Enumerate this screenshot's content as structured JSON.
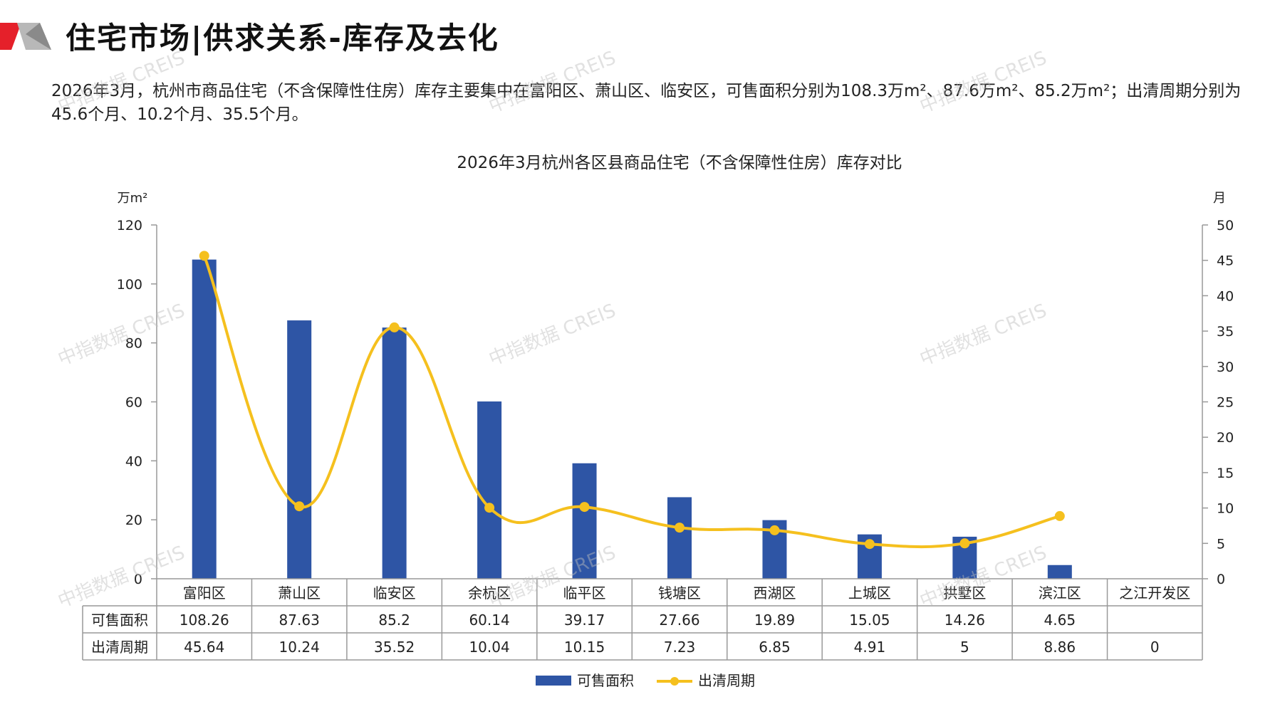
{
  "header": {
    "title": "住宅市场|供求关系-库存及去化"
  },
  "summary": {
    "text": "2026年3月，杭州市商品住宅（不含保障性住房）库存主要集中在富阳区、萧山区、临安区，可售面积分别为108.3万m²、87.6万m²、85.2万m²；出清周期分别为45.6个月、10.2个月、35.5个月。"
  },
  "watermark": "中指数据 CREIS",
  "colors": {
    "bar": "#2E55A5",
    "line": "#F5C01E",
    "brand_red": "#E5202A",
    "brand_grey": "#9A9A9A"
  },
  "chart_data": {
    "type": "bar+line",
    "title": "2026年3月杭州各区县商品住宅（不含保障性住房）库存对比",
    "categories": [
      "富阳区",
      "萧山区",
      "临安区",
      "余杭区",
      "临平区",
      "钱塘区",
      "西湖区",
      "上城区",
      "拱墅区",
      "滨江区",
      "之江开发区"
    ],
    "series": [
      {
        "name": "可售面积",
        "type": "bar",
        "axis": "left",
        "values": [
          108.26,
          87.63,
          85.2,
          60.14,
          39.17,
          27.66,
          19.89,
          15.05,
          14.26,
          4.65,
          null
        ],
        "labels": [
          "108.26",
          "87.63",
          "85.2",
          "60.14",
          "39.17",
          "27.66",
          "19.89",
          "15.05",
          "14.26",
          "4.65",
          ""
        ]
      },
      {
        "name": "出清周期",
        "type": "line",
        "axis": "right",
        "values": [
          45.64,
          10.24,
          35.52,
          10.04,
          10.15,
          7.23,
          6.85,
          4.91,
          5,
          8.86,
          0
        ],
        "labels": [
          "45.64",
          "10.24",
          "35.52",
          "10.04",
          "10.15",
          "7.23",
          "6.85",
          "4.91",
          "5",
          "8.86",
          "0"
        ]
      }
    ],
    "y_left": {
      "unit": "万m²",
      "ticks": [
        0,
        20,
        40,
        60,
        80,
        100,
        120
      ],
      "range": [
        0,
        120
      ]
    },
    "y_right": {
      "unit": "月",
      "ticks": [
        0,
        5,
        10,
        15,
        20,
        25,
        30,
        35,
        40,
        45,
        50
      ],
      "range": [
        0,
        50
      ]
    },
    "legend": {
      "position": "bottom"
    },
    "data_table": true
  }
}
